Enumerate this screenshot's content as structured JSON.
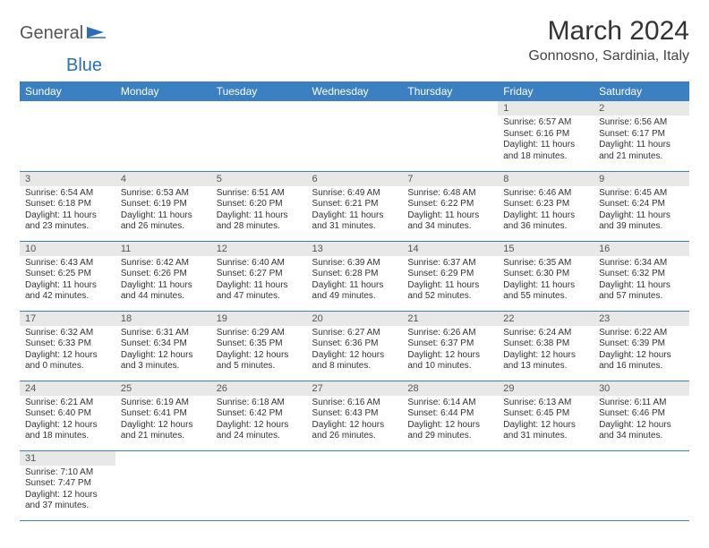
{
  "logo": {
    "general": "General",
    "blue": "Blue"
  },
  "title": "March 2024",
  "location": "Gonnosno, Sardinia, Italy",
  "colors": {
    "header_bg": "#3a80c3",
    "header_fg": "#ffffff",
    "daynum_bg": "#e8e8e8",
    "row_border": "#3a80c3",
    "logo_blue": "#2a6fb5"
  },
  "dow": [
    "Sunday",
    "Monday",
    "Tuesday",
    "Wednesday",
    "Thursday",
    "Friday",
    "Saturday"
  ],
  "weeks": [
    [
      {
        "n": "",
        "lines": []
      },
      {
        "n": "",
        "lines": []
      },
      {
        "n": "",
        "lines": []
      },
      {
        "n": "",
        "lines": []
      },
      {
        "n": "",
        "lines": []
      },
      {
        "n": "1",
        "lines": [
          "Sunrise: 6:57 AM",
          "Sunset: 6:16 PM",
          "Daylight: 11 hours",
          "and 18 minutes."
        ]
      },
      {
        "n": "2",
        "lines": [
          "Sunrise: 6:56 AM",
          "Sunset: 6:17 PM",
          "Daylight: 11 hours",
          "and 21 minutes."
        ]
      }
    ],
    [
      {
        "n": "3",
        "lines": [
          "Sunrise: 6:54 AM",
          "Sunset: 6:18 PM",
          "Daylight: 11 hours",
          "and 23 minutes."
        ]
      },
      {
        "n": "4",
        "lines": [
          "Sunrise: 6:53 AM",
          "Sunset: 6:19 PM",
          "Daylight: 11 hours",
          "and 26 minutes."
        ]
      },
      {
        "n": "5",
        "lines": [
          "Sunrise: 6:51 AM",
          "Sunset: 6:20 PM",
          "Daylight: 11 hours",
          "and 28 minutes."
        ]
      },
      {
        "n": "6",
        "lines": [
          "Sunrise: 6:49 AM",
          "Sunset: 6:21 PM",
          "Daylight: 11 hours",
          "and 31 minutes."
        ]
      },
      {
        "n": "7",
        "lines": [
          "Sunrise: 6:48 AM",
          "Sunset: 6:22 PM",
          "Daylight: 11 hours",
          "and 34 minutes."
        ]
      },
      {
        "n": "8",
        "lines": [
          "Sunrise: 6:46 AM",
          "Sunset: 6:23 PM",
          "Daylight: 11 hours",
          "and 36 minutes."
        ]
      },
      {
        "n": "9",
        "lines": [
          "Sunrise: 6:45 AM",
          "Sunset: 6:24 PM",
          "Daylight: 11 hours",
          "and 39 minutes."
        ]
      }
    ],
    [
      {
        "n": "10",
        "lines": [
          "Sunrise: 6:43 AM",
          "Sunset: 6:25 PM",
          "Daylight: 11 hours",
          "and 42 minutes."
        ]
      },
      {
        "n": "11",
        "lines": [
          "Sunrise: 6:42 AM",
          "Sunset: 6:26 PM",
          "Daylight: 11 hours",
          "and 44 minutes."
        ]
      },
      {
        "n": "12",
        "lines": [
          "Sunrise: 6:40 AM",
          "Sunset: 6:27 PM",
          "Daylight: 11 hours",
          "and 47 minutes."
        ]
      },
      {
        "n": "13",
        "lines": [
          "Sunrise: 6:39 AM",
          "Sunset: 6:28 PM",
          "Daylight: 11 hours",
          "and 49 minutes."
        ]
      },
      {
        "n": "14",
        "lines": [
          "Sunrise: 6:37 AM",
          "Sunset: 6:29 PM",
          "Daylight: 11 hours",
          "and 52 minutes."
        ]
      },
      {
        "n": "15",
        "lines": [
          "Sunrise: 6:35 AM",
          "Sunset: 6:30 PM",
          "Daylight: 11 hours",
          "and 55 minutes."
        ]
      },
      {
        "n": "16",
        "lines": [
          "Sunrise: 6:34 AM",
          "Sunset: 6:32 PM",
          "Daylight: 11 hours",
          "and 57 minutes."
        ]
      }
    ],
    [
      {
        "n": "17",
        "lines": [
          "Sunrise: 6:32 AM",
          "Sunset: 6:33 PM",
          "Daylight: 12 hours",
          "and 0 minutes."
        ]
      },
      {
        "n": "18",
        "lines": [
          "Sunrise: 6:31 AM",
          "Sunset: 6:34 PM",
          "Daylight: 12 hours",
          "and 3 minutes."
        ]
      },
      {
        "n": "19",
        "lines": [
          "Sunrise: 6:29 AM",
          "Sunset: 6:35 PM",
          "Daylight: 12 hours",
          "and 5 minutes."
        ]
      },
      {
        "n": "20",
        "lines": [
          "Sunrise: 6:27 AM",
          "Sunset: 6:36 PM",
          "Daylight: 12 hours",
          "and 8 minutes."
        ]
      },
      {
        "n": "21",
        "lines": [
          "Sunrise: 6:26 AM",
          "Sunset: 6:37 PM",
          "Daylight: 12 hours",
          "and 10 minutes."
        ]
      },
      {
        "n": "22",
        "lines": [
          "Sunrise: 6:24 AM",
          "Sunset: 6:38 PM",
          "Daylight: 12 hours",
          "and 13 minutes."
        ]
      },
      {
        "n": "23",
        "lines": [
          "Sunrise: 6:22 AM",
          "Sunset: 6:39 PM",
          "Daylight: 12 hours",
          "and 16 minutes."
        ]
      }
    ],
    [
      {
        "n": "24",
        "lines": [
          "Sunrise: 6:21 AM",
          "Sunset: 6:40 PM",
          "Daylight: 12 hours",
          "and 18 minutes."
        ]
      },
      {
        "n": "25",
        "lines": [
          "Sunrise: 6:19 AM",
          "Sunset: 6:41 PM",
          "Daylight: 12 hours",
          "and 21 minutes."
        ]
      },
      {
        "n": "26",
        "lines": [
          "Sunrise: 6:18 AM",
          "Sunset: 6:42 PM",
          "Daylight: 12 hours",
          "and 24 minutes."
        ]
      },
      {
        "n": "27",
        "lines": [
          "Sunrise: 6:16 AM",
          "Sunset: 6:43 PM",
          "Daylight: 12 hours",
          "and 26 minutes."
        ]
      },
      {
        "n": "28",
        "lines": [
          "Sunrise: 6:14 AM",
          "Sunset: 6:44 PM",
          "Daylight: 12 hours",
          "and 29 minutes."
        ]
      },
      {
        "n": "29",
        "lines": [
          "Sunrise: 6:13 AM",
          "Sunset: 6:45 PM",
          "Daylight: 12 hours",
          "and 31 minutes."
        ]
      },
      {
        "n": "30",
        "lines": [
          "Sunrise: 6:11 AM",
          "Sunset: 6:46 PM",
          "Daylight: 12 hours",
          "and 34 minutes."
        ]
      }
    ],
    [
      {
        "n": "31",
        "lines": [
          "Sunrise: 7:10 AM",
          "Sunset: 7:47 PM",
          "Daylight: 12 hours",
          "and 37 minutes."
        ]
      },
      {
        "n": "",
        "lines": []
      },
      {
        "n": "",
        "lines": []
      },
      {
        "n": "",
        "lines": []
      },
      {
        "n": "",
        "lines": []
      },
      {
        "n": "",
        "lines": []
      },
      {
        "n": "",
        "lines": []
      }
    ]
  ]
}
